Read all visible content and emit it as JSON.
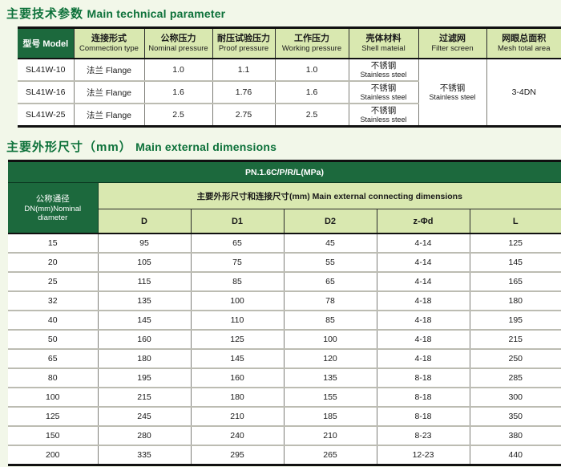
{
  "colors": {
    "dark_green": "#1c693d",
    "light_green": "#d9e8b0",
    "title_green": "#0d713a",
    "page_background": "#f2f7e9"
  },
  "section1": {
    "title_zh": "主要技术参数",
    "title_en": "Main technical parameter",
    "table": {
      "headers": [
        {
          "label": "型号 Model"
        },
        {
          "zh": "连接形式",
          "en": "Commection type"
        },
        {
          "zh": "公称压力",
          "en": "Nominal pressure"
        },
        {
          "zh": "耐压试验压力",
          "en": "Proof pressure"
        },
        {
          "zh": "工作压力",
          "en": "Working pressure"
        },
        {
          "zh": "壳体材料",
          "en": "Shell mateial"
        },
        {
          "zh": "过滤网",
          "en": "Filter screen"
        },
        {
          "zh": "网眼总面积",
          "en": "Mesh total area"
        }
      ],
      "rows": [
        [
          "SL41W-10",
          "法兰 Flange",
          "1.0",
          "1.1",
          "1.0",
          [
            "不锈钢",
            "Stainless steel"
          ]
        ],
        [
          "SL41W-16",
          "法兰 Flange",
          "1.6",
          "1.76",
          "1.6",
          [
            "不锈钢",
            "Stainless steel"
          ]
        ],
        [
          "SL41W-25",
          "法兰 Flange",
          "2.5",
          "2.75",
          "2.5",
          [
            "不锈钢",
            "Stainless steel"
          ]
        ]
      ],
      "filter_zh": "不锈钢",
      "filter_en": "Stainless steel",
      "mesh_area": "3-4DN"
    }
  },
  "section2": {
    "title_zh": "主要外形尺寸（mm）",
    "title_en": "Main external dimensions",
    "table": {
      "pn_header": "PN.1.6C/P/R/L(MPa)",
      "dn_zh": "公称通径",
      "dn_en1": "DN(mm)Nominal",
      "dn_en2": "diameter",
      "group_header": "主要外形尺寸和连接尺寸(mm) Main external connecting dimensions",
      "columns": [
        "D",
        "D1",
        "D2",
        "z-Φd",
        "L"
      ],
      "rows": [
        [
          "15",
          "95",
          "65",
          "45",
          "4-14",
          "125"
        ],
        [
          "20",
          "105",
          "75",
          "55",
          "4-14",
          "145"
        ],
        [
          "25",
          "115",
          "85",
          "65",
          "4-14",
          "165"
        ],
        [
          "32",
          "135",
          "100",
          "78",
          "4-18",
          "180"
        ],
        [
          "40",
          "145",
          "110",
          "85",
          "4-18",
          "195"
        ],
        [
          "50",
          "160",
          "125",
          "100",
          "4-18",
          "215"
        ],
        [
          "65",
          "180",
          "145",
          "120",
          "4-18",
          "250"
        ],
        [
          "80",
          "195",
          "160",
          "135",
          "8-18",
          "285"
        ],
        [
          "100",
          "215",
          "180",
          "155",
          "8-18",
          "300"
        ],
        [
          "125",
          "245",
          "210",
          "185",
          "8-18",
          "350"
        ],
        [
          "150",
          "280",
          "240",
          "210",
          "8-23",
          "380"
        ],
        [
          "200",
          "335",
          "295",
          "265",
          "12-23",
          "440"
        ]
      ]
    }
  }
}
